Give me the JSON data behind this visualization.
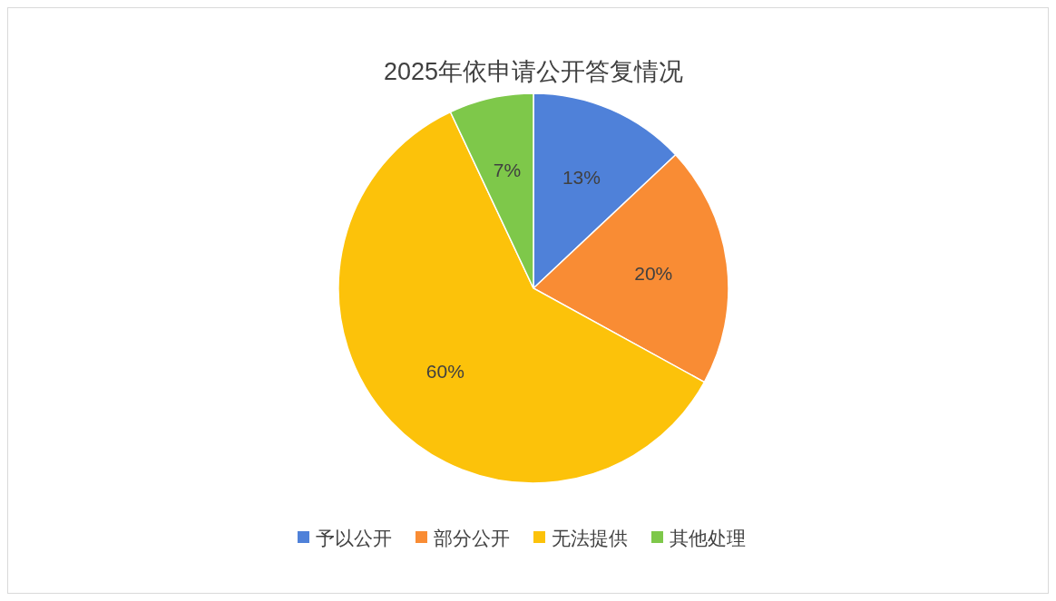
{
  "chart_data": {
    "type": "pie",
    "title": "2025年依申请公开答复情况",
    "categories": [
      "予以公开",
      "部分公开",
      "无法提供",
      "其他处理"
    ],
    "values": [
      13,
      20,
      60,
      7
    ],
    "colors": [
      "#4f81d9",
      "#f98c34",
      "#fcc20a",
      "#7ec84a"
    ],
    "value_labels": [
      "13%",
      "20%",
      "60%",
      "7%"
    ],
    "legend": "bottom"
  }
}
